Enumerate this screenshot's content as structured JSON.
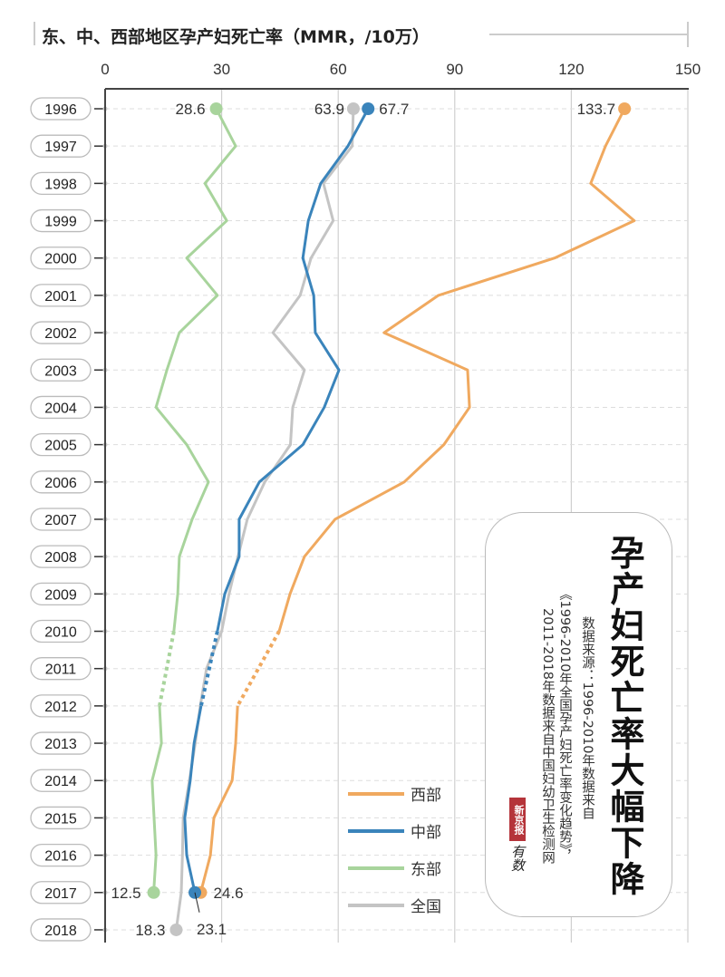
{
  "chart_data": {
    "type": "line",
    "title": "东、中、西部地区孕产妇死亡率（MMR，/10万）",
    "orientation": "horizontal-values-vertical-years",
    "x_ticks": [
      0,
      30,
      60,
      90,
      120,
      150
    ],
    "xlim": [
      0,
      150
    ],
    "categories": [
      "1996",
      "1997",
      "1998",
      "1999",
      "2000",
      "2001",
      "2002",
      "2003",
      "2004",
      "2005",
      "2006",
      "2007",
      "2008",
      "2009",
      "2010",
      "2011",
      "2012",
      "2013",
      "2014",
      "2015",
      "2016",
      "2017",
      "2018"
    ],
    "grid": true,
    "legend_placement": "bottom-right",
    "series": [
      {
        "name": "西部",
        "color": "#f0a95f",
        "values": [
          133.7,
          128.8,
          125.0,
          136.2,
          115.7,
          85.8,
          71.8,
          93.3,
          93.8,
          87.2,
          77.0,
          59.2,
          51.3,
          47.6,
          44.8,
          null,
          34.1,
          33.6,
          32.7,
          28.0,
          27.1,
          24.6,
          null
        ]
      },
      {
        "name": "中部",
        "color": "#3a84bb",
        "values": [
          67.7,
          62.5,
          55.5,
          52.3,
          50.9,
          53.7,
          54.1,
          60.2,
          56.4,
          50.9,
          39.7,
          34.5,
          34.5,
          30.8,
          28.9,
          null,
          24.7,
          22.9,
          21.9,
          20.5,
          21.0,
          23.1,
          null
        ]
      },
      {
        "name": "东部",
        "color": "#a8d49c",
        "values": [
          28.6,
          33.6,
          25.7,
          31.3,
          21.0,
          28.9,
          19.1,
          15.9,
          13.1,
          21.0,
          26.6,
          22.4,
          19.1,
          18.7,
          17.7,
          null,
          14.0,
          14.5,
          12.1,
          12.6,
          13.1,
          12.5,
          null
        ]
      },
      {
        "name": "全国",
        "color": "#c4c4c4",
        "values": [
          63.9,
          63.6,
          56.2,
          58.7,
          53.0,
          50.2,
          43.2,
          51.3,
          48.3,
          47.7,
          41.1,
          36.6,
          34.2,
          31.9,
          30.0,
          26.1,
          24.5,
          23.2,
          21.7,
          20.1,
          19.9,
          19.6,
          18.3
        ]
      }
    ],
    "annotations": [
      {
        "series": "东部",
        "year": "1996",
        "text": "28.6"
      },
      {
        "series": "全国",
        "year": "1996",
        "text": "63.9"
      },
      {
        "series": "中部",
        "year": "1996",
        "text": "67.7"
      },
      {
        "series": "西部",
        "year": "1996",
        "text": "133.7"
      },
      {
        "series": "东部",
        "year": "2017",
        "text": "12.5"
      },
      {
        "series": "西部",
        "year": "2017",
        "text": "24.6"
      },
      {
        "series": "中部",
        "year": "2017",
        "text": "23.1"
      },
      {
        "series": "全国",
        "year": "2018",
        "text": "18.3"
      }
    ]
  },
  "panel": {
    "headline": "孕产妇死亡率大幅下降",
    "source_line1": "数据来源：1996-2010年数据来自",
    "source_line2": "《1996-2010年全国孕产妇死亡率变化趋势》，",
    "source_line3": "2011-2018年数据来自中国妇幼卫生检测网",
    "logo_text": "新京报",
    "logo_sub": "有数"
  }
}
